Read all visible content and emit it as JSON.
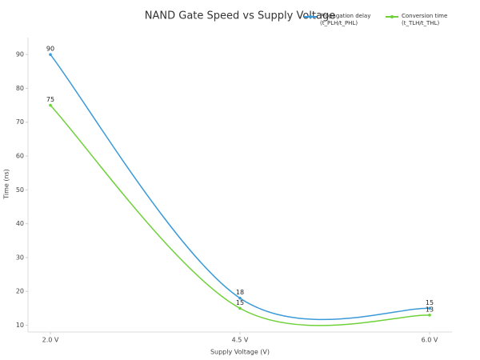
{
  "chart_data": {
    "type": "line",
    "title": "NAND Gate Speed vs Supply Voltage",
    "x_label": "Supply Voltage (V)",
    "y_label": "Time (ns)",
    "categories": [
      "2.0 V",
      "4.5 V",
      "6.0 V"
    ],
    "series": [
      {
        "name": "Propagation delay (t_PLH/t_PHL)",
        "color": "#3a9ad9",
        "values": [
          90,
          18,
          15
        ]
      },
      {
        "name": "Conversion time (t_TLH/t_THL)",
        "color": "#6fd13a",
        "values": [
          75,
          15,
          13
        ]
      }
    ],
    "ylim": [
      8,
      95
    ],
    "yticks": [
      10,
      20,
      30,
      40,
      50,
      60,
      70,
      80,
      90
    ],
    "grid": false
  }
}
